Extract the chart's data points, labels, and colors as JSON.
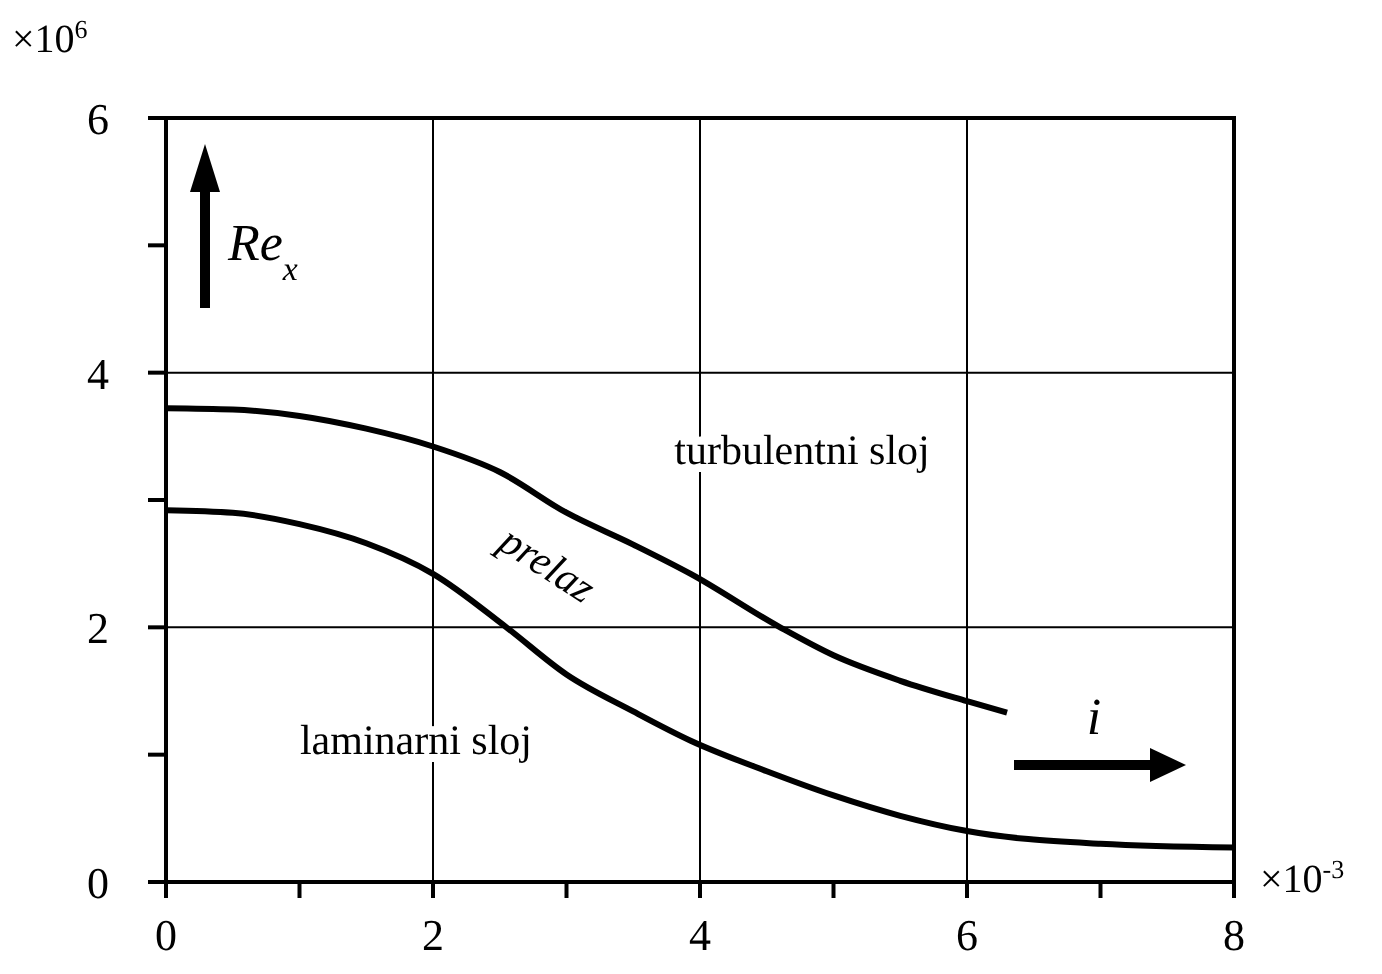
{
  "chart_data": {
    "type": "line",
    "xlabel": "i",
    "ylabel": "Re$_{x}$",
    "xlim": [
      0,
      8
    ],
    "ylim": [
      0,
      6
    ],
    "xticks": [
      0,
      {
        "value": 1,
        "label": null
      },
      2,
      {
        "value": 3,
        "label": null
      },
      4,
      {
        "value": 5,
        "label": null
      },
      6,
      {
        "value": 7,
        "label": null
      },
      8
    ],
    "yticks": [
      0,
      {
        "value": 1,
        "label": null
      },
      2,
      {
        "value": 3,
        "label": null
      },
      4,
      {
        "value": 5,
        "label": null
      },
      6
    ],
    "grid": true,
    "marker": "none",
    "line_style": "solid",
    "series": [
      {
        "color": "#000000",
        "x": [
          0,
          0.5,
          1,
          1.5,
          2,
          2.5,
          3,
          3.5,
          3.93,
          4.6,
          5,
          5.5,
          6,
          6.3
        ],
        "values": [
          3.72,
          3.71,
          3.66,
          3.56,
          3.42,
          3.22,
          2.9,
          2.65,
          2.42,
          2.0,
          1.78,
          1.58,
          1.42,
          1.33
        ]
      },
      {
        "color": "#000000",
        "x": [
          0,
          0.5,
          1,
          1.5,
          2,
          2.55,
          3,
          3.5,
          3.93,
          4.5,
          5,
          5.5,
          6,
          7,
          8
        ],
        "values": [
          2.92,
          2.9,
          2.81,
          2.66,
          2.42,
          2.0,
          1.63,
          1.34,
          1.11,
          0.87,
          0.68,
          0.52,
          0.4,
          0.3,
          0.27
        ]
      }
    ],
    "annotations": [
      "turbulentni sloj",
      "prelaz",
      "laminarni sloj",
      "×10$^{6}$",
      "×10$^{-3}$"
    ]
  }
}
